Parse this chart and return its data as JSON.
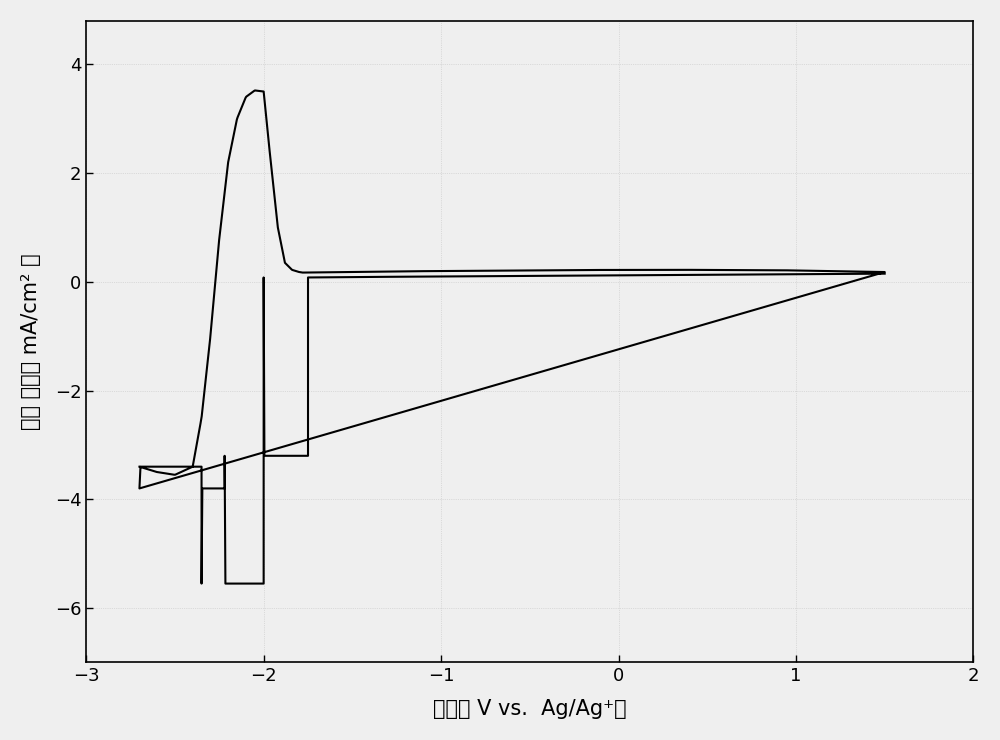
{
  "xlim": [
    -3.0,
    2.0
  ],
  "ylim": [
    -7.0,
    4.8
  ],
  "xticks": [
    -3,
    -2,
    -1,
    0,
    1,
    2
  ],
  "yticks": [
    -6,
    -4,
    -2,
    0,
    2,
    4
  ],
  "xlabel": "电压（ V vs.  Ag/Ag⁺）",
  "ylabel": "电流 密度（ mA/cm² ）",
  "line_color": "#000000",
  "background_color": "#efefef",
  "plot_bg_color": "#efefef",
  "xlabel_fontsize": 15,
  "ylabel_fontsize": 15,
  "tick_fontsize": 13
}
